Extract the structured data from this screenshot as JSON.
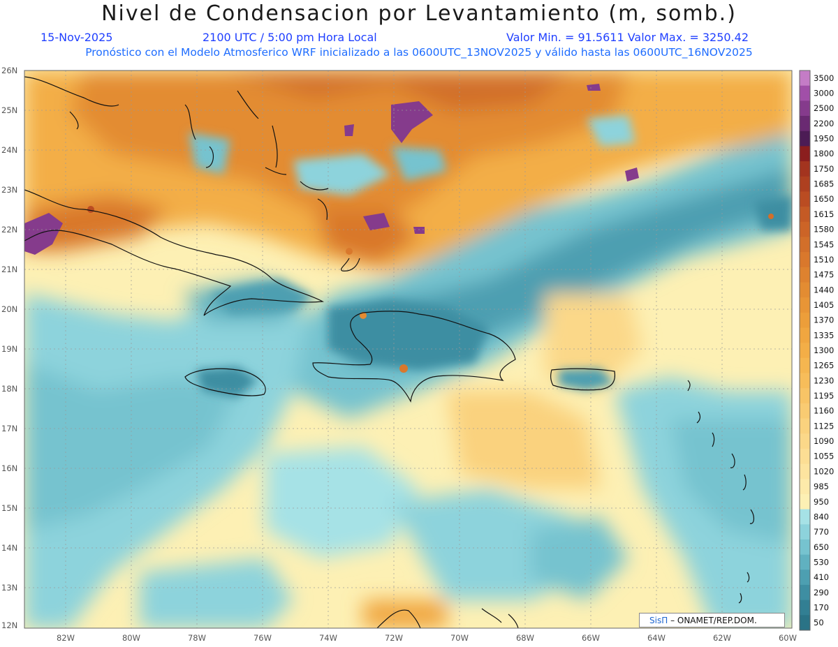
{
  "title": "Nivel de Condensacion por Levantamiento (m, somb.)",
  "header": {
    "date": "15-Nov-2025",
    "time": "2100 UTC / 5:00 pm Hora Local",
    "minmax": "Valor Min. = 91.5611   Valor Max. = 3250.42",
    "model_line": "Pronóstico con el Modelo Atmosferico WRF inicializado a las 0600UTC_13NOV2025 y válido hasta las  0600UTC_16NOV2025"
  },
  "map": {
    "region": "Caribbean",
    "lat_labels": [
      "26N",
      "25N",
      "24N",
      "23N",
      "22N",
      "21N",
      "20N",
      "19N",
      "18N",
      "17N",
      "16N",
      "15N",
      "14N",
      "13N",
      "12N"
    ],
    "lon_labels": [
      "82W",
      "80W",
      "78W",
      "76W",
      "74W",
      "72W",
      "70W",
      "68W",
      "66W",
      "64W",
      "62W",
      "60W"
    ]
  },
  "colorbar": {
    "levels": [
      "3500",
      "3000",
      "2500",
      "2200",
      "1950",
      "1800",
      "1750",
      "1685",
      "1650",
      "1615",
      "1580",
      "1545",
      "1510",
      "1475",
      "1440",
      "1405",
      "1370",
      "1335",
      "1300",
      "1265",
      "1230",
      "1195",
      "1160",
      "1125",
      "1090",
      "1055",
      "1020",
      "985",
      "950",
      "840",
      "770",
      "650",
      "530",
      "410",
      "290",
      "170",
      "50"
    ],
    "colors": [
      "#c47cc6",
      "#a14fa8",
      "#853b8c",
      "#6a2a72",
      "#4c1c55",
      "#8b1e1e",
      "#a3341f",
      "#ae4020",
      "#ba4c22",
      "#c45a25",
      "#cc6427",
      "#d26f2a",
      "#d9782c",
      "#de822f",
      "#e38c32",
      "#e89536",
      "#ec9e3a",
      "#f0a640",
      "#f3ae47",
      "#f5b650",
      "#f7bd5a",
      "#f8c466",
      "#f9cb72",
      "#fad27e",
      "#fbd889",
      "#fcde94",
      "#fde49f",
      "#fdeaaa",
      "#fdf0b4",
      "#a6e2e6",
      "#8dd3dc",
      "#76c3cf",
      "#60b1c0",
      "#4d9fb1",
      "#3e8ea2",
      "#327f93",
      "#2a7386"
    ]
  },
  "credit": {
    "sis": "SisΠ",
    "rest": "– ONAMET/REP.DOM."
  },
  "colors": {
    "orange_high": "#e38c32",
    "orange_mid": "#f5b650",
    "yellow_low": "#fdf0b4",
    "cyan_light": "#a6e2e6",
    "teal_dark": "#3e8ea2",
    "purple_max": "#853b8c"
  }
}
